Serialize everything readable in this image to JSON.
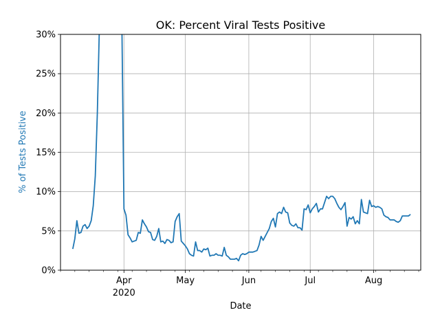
{
  "chart_data": {
    "type": "line",
    "title": "OK: Percent Viral Tests Positive",
    "xlabel": "Date",
    "ylabel": "% of Tests Positive",
    "ylabel_color": "#1f77b4",
    "line_color": "#1f77b4",
    "grid": true,
    "xlim": [
      "2020-03-01",
      "2020-08-24"
    ],
    "ylim": [
      0,
      30
    ],
    "y_ticks": [
      0,
      5,
      10,
      15,
      20,
      25,
      30
    ],
    "y_tick_labels": [
      "0%",
      "5%",
      "10%",
      "15%",
      "20%",
      "25%",
      "30%"
    ],
    "x_major_ticks": [
      {
        "date": "2020-04-01",
        "label": "Apr",
        "sublabel": "2020"
      },
      {
        "date": "2020-05-01",
        "label": "May",
        "sublabel": ""
      },
      {
        "date": "2020-06-01",
        "label": "Jun",
        "sublabel": ""
      },
      {
        "date": "2020-07-01",
        "label": "Jul",
        "sublabel": ""
      },
      {
        "date": "2020-08-01",
        "label": "Aug",
        "sublabel": ""
      }
    ],
    "x_minor_ticks": [
      "2020-03-01",
      "2020-03-08",
      "2020-03-15",
      "2020-03-22",
      "2020-03-29",
      "2020-04-05",
      "2020-04-12",
      "2020-04-19",
      "2020-04-26",
      "2020-05-03",
      "2020-05-10",
      "2020-05-17",
      "2020-05-24",
      "2020-05-31",
      "2020-06-07",
      "2020-06-14",
      "2020-06-21",
      "2020-06-28",
      "2020-07-05",
      "2020-07-12",
      "2020-07-19",
      "2020-07-26",
      "2020-08-02",
      "2020-08-09",
      "2020-08-16",
      "2020-08-23"
    ],
    "series": [
      {
        "points": [
          [
            "2020-03-07",
            2.7
          ],
          [
            "2020-03-08",
            4.0
          ],
          [
            "2020-03-09",
            6.3
          ],
          [
            "2020-03-10",
            4.7
          ],
          [
            "2020-03-11",
            4.8
          ],
          [
            "2020-03-12",
            5.6
          ],
          [
            "2020-03-13",
            5.8
          ],
          [
            "2020-03-14",
            5.3
          ],
          [
            "2020-03-15",
            5.6
          ],
          [
            "2020-03-16",
            6.3
          ],
          [
            "2020-03-17",
            8.2
          ],
          [
            "2020-03-18",
            12.0
          ],
          [
            "2020-03-19",
            20.0
          ],
          [
            "2020-03-20",
            31.0
          ],
          [
            "2020-03-21",
            34.0
          ],
          [
            "2020-03-30",
            36.0
          ],
          [
            "2020-03-31",
            31.0
          ],
          [
            "2020-04-01",
            7.8
          ],
          [
            "2020-04-02",
            7.0
          ],
          [
            "2020-04-03",
            4.5
          ],
          [
            "2020-04-04",
            4.1
          ],
          [
            "2020-04-05",
            3.6
          ],
          [
            "2020-04-06",
            3.7
          ],
          [
            "2020-04-07",
            3.8
          ],
          [
            "2020-04-08",
            4.8
          ],
          [
            "2020-04-09",
            4.7
          ],
          [
            "2020-04-10",
            6.4
          ],
          [
            "2020-04-11",
            5.9
          ],
          [
            "2020-04-12",
            5.5
          ],
          [
            "2020-04-13",
            4.9
          ],
          [
            "2020-04-14",
            4.8
          ],
          [
            "2020-04-15",
            3.9
          ],
          [
            "2020-04-16",
            3.8
          ],
          [
            "2020-04-17",
            4.3
          ],
          [
            "2020-04-18",
            5.3
          ],
          [
            "2020-04-19",
            3.6
          ],
          [
            "2020-04-20",
            3.7
          ],
          [
            "2020-04-21",
            3.4
          ],
          [
            "2020-04-22",
            3.9
          ],
          [
            "2020-04-23",
            3.8
          ],
          [
            "2020-04-24",
            3.5
          ],
          [
            "2020-04-25",
            3.6
          ],
          [
            "2020-04-26",
            6.2
          ],
          [
            "2020-04-27",
            6.8
          ],
          [
            "2020-04-28",
            7.2
          ],
          [
            "2020-04-29",
            3.7
          ],
          [
            "2020-04-30",
            3.4
          ],
          [
            "2020-05-01",
            3.1
          ],
          [
            "2020-05-02",
            2.7
          ],
          [
            "2020-05-03",
            2.1
          ],
          [
            "2020-05-04",
            1.9
          ],
          [
            "2020-05-05",
            1.8
          ],
          [
            "2020-05-06",
            3.6
          ],
          [
            "2020-05-07",
            2.5
          ],
          [
            "2020-05-08",
            2.5
          ],
          [
            "2020-05-09",
            2.3
          ],
          [
            "2020-05-10",
            2.7
          ],
          [
            "2020-05-11",
            2.6
          ],
          [
            "2020-05-12",
            2.8
          ],
          [
            "2020-05-13",
            1.8
          ],
          [
            "2020-05-14",
            1.9
          ],
          [
            "2020-05-15",
            1.9
          ],
          [
            "2020-05-16",
            2.1
          ],
          [
            "2020-05-17",
            1.9
          ],
          [
            "2020-05-18",
            1.9
          ],
          [
            "2020-05-19",
            1.8
          ],
          [
            "2020-05-20",
            2.9
          ],
          [
            "2020-05-21",
            1.9
          ],
          [
            "2020-05-22",
            1.7
          ],
          [
            "2020-05-23",
            1.4
          ],
          [
            "2020-05-24",
            1.4
          ],
          [
            "2020-05-25",
            1.4
          ],
          [
            "2020-05-26",
            1.5
          ],
          [
            "2020-05-27",
            1.2
          ],
          [
            "2020-05-28",
            1.9
          ],
          [
            "2020-05-29",
            2.1
          ],
          [
            "2020-05-30",
            2.0
          ],
          [
            "2020-05-31",
            2.1
          ],
          [
            "2020-06-01",
            2.3
          ],
          [
            "2020-06-02",
            2.3
          ],
          [
            "2020-06-03",
            2.3
          ],
          [
            "2020-06-04",
            2.4
          ],
          [
            "2020-06-05",
            2.5
          ],
          [
            "2020-06-06",
            3.2
          ],
          [
            "2020-06-07",
            4.3
          ],
          [
            "2020-06-08",
            3.8
          ],
          [
            "2020-06-09",
            4.3
          ],
          [
            "2020-06-10",
            4.8
          ],
          [
            "2020-06-11",
            5.3
          ],
          [
            "2020-06-12",
            6.2
          ],
          [
            "2020-06-13",
            6.6
          ],
          [
            "2020-06-14",
            5.5
          ],
          [
            "2020-06-15",
            7.2
          ],
          [
            "2020-06-16",
            7.4
          ],
          [
            "2020-06-17",
            7.2
          ],
          [
            "2020-06-18",
            8.0
          ],
          [
            "2020-06-19",
            7.4
          ],
          [
            "2020-06-20",
            7.3
          ],
          [
            "2020-06-21",
            6.0
          ],
          [
            "2020-06-22",
            5.7
          ],
          [
            "2020-06-23",
            5.6
          ],
          [
            "2020-06-24",
            5.9
          ],
          [
            "2020-06-25",
            5.4
          ],
          [
            "2020-06-26",
            5.4
          ],
          [
            "2020-06-27",
            5.1
          ],
          [
            "2020-06-28",
            7.8
          ],
          [
            "2020-06-29",
            7.7
          ],
          [
            "2020-06-30",
            8.3
          ],
          [
            "2020-07-01",
            7.3
          ],
          [
            "2020-07-02",
            7.8
          ],
          [
            "2020-07-03",
            8.1
          ],
          [
            "2020-07-04",
            8.5
          ],
          [
            "2020-07-05",
            7.4
          ],
          [
            "2020-07-06",
            7.8
          ],
          [
            "2020-07-07",
            7.8
          ],
          [
            "2020-07-08",
            8.6
          ],
          [
            "2020-07-09",
            9.4
          ],
          [
            "2020-07-10",
            9.1
          ],
          [
            "2020-07-11",
            9.4
          ],
          [
            "2020-07-12",
            9.4
          ],
          [
            "2020-07-13",
            9.1
          ],
          [
            "2020-07-14",
            8.5
          ],
          [
            "2020-07-15",
            8.0
          ],
          [
            "2020-07-16",
            7.7
          ],
          [
            "2020-07-17",
            8.1
          ],
          [
            "2020-07-18",
            8.6
          ],
          [
            "2020-07-19",
            5.6
          ],
          [
            "2020-07-20",
            6.7
          ],
          [
            "2020-07-21",
            6.5
          ],
          [
            "2020-07-22",
            6.8
          ],
          [
            "2020-07-23",
            5.9
          ],
          [
            "2020-07-24",
            6.3
          ],
          [
            "2020-07-25",
            5.9
          ],
          [
            "2020-07-26",
            9.0
          ],
          [
            "2020-07-27",
            7.4
          ],
          [
            "2020-07-28",
            7.3
          ],
          [
            "2020-07-29",
            7.2
          ],
          [
            "2020-07-30",
            8.9
          ],
          [
            "2020-07-31",
            8.1
          ],
          [
            "2020-08-01",
            8.2
          ],
          [
            "2020-08-02",
            8.0
          ],
          [
            "2020-08-03",
            8.1
          ],
          [
            "2020-08-04",
            8.0
          ],
          [
            "2020-08-05",
            7.8
          ],
          [
            "2020-08-06",
            7.0
          ],
          [
            "2020-08-07",
            6.8
          ],
          [
            "2020-08-08",
            6.7
          ],
          [
            "2020-08-09",
            6.4
          ],
          [
            "2020-08-10",
            6.4
          ],
          [
            "2020-08-11",
            6.4
          ],
          [
            "2020-08-12",
            6.2
          ],
          [
            "2020-08-13",
            6.1
          ],
          [
            "2020-08-14",
            6.3
          ],
          [
            "2020-08-15",
            6.9
          ],
          [
            "2020-08-16",
            6.9
          ],
          [
            "2020-08-17",
            6.9
          ],
          [
            "2020-08-18",
            6.9
          ],
          [
            "2020-08-19",
            7.1
          ]
        ]
      }
    ]
  }
}
